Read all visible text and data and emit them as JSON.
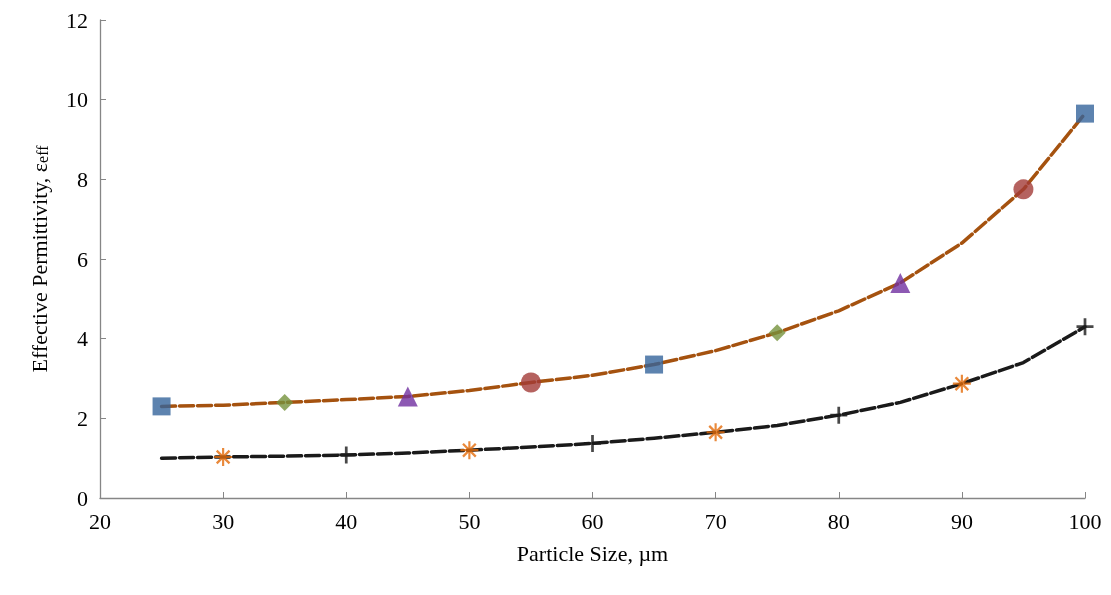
{
  "chart_data": {
    "type": "line",
    "xlabel": "Particle Size, µm",
    "ylabel": "Effective Permittivity, ε$_{eff}$",
    "xlim": [
      20,
      100
    ],
    "xticks": [
      20,
      30,
      40,
      50,
      60,
      70,
      80,
      90,
      100
    ],
    "ylim": [
      0,
      12
    ],
    "yticks": [
      0,
      2,
      4,
      6,
      8,
      10,
      12
    ],
    "grid": false,
    "series": [
      {
        "color": "#a5520f",
        "line_style": "dashed",
        "marker": "none",
        "x": [
          25,
          30,
          35,
          40,
          45,
          50,
          55,
          60,
          65,
          70,
          75,
          80,
          85,
          90,
          95,
          100
        ],
        "values": [
          2.3,
          2.33,
          2.4,
          2.47,
          2.55,
          2.7,
          2.9,
          3.08,
          3.35,
          3.7,
          4.15,
          4.7,
          5.4,
          6.4,
          7.75,
          9.65
        ]
      },
      {
        "type": "scatter",
        "color": "#35649b",
        "marker": "square",
        "x": [
          25,
          65,
          100
        ],
        "values": [
          2.3,
          3.35,
          9.65
        ]
      },
      {
        "type": "scatter",
        "color": "#76923c",
        "marker": "diamond",
        "x": [
          35,
          75
        ],
        "values": [
          2.4,
          4.15
        ]
      },
      {
        "type": "scatter",
        "color": "#7030a0",
        "marker": "triangle",
        "x": [
          45,
          85
        ],
        "values": [
          2.55,
          5.4
        ]
      },
      {
        "type": "scatter",
        "color": "#a33b37",
        "marker": "circle",
        "x": [
          55,
          95
        ],
        "values": [
          2.9,
          7.75
        ]
      },
      {
        "color": "#1a1a1a",
        "line_style": "dashed",
        "marker": "none",
        "x": [
          25,
          30,
          35,
          40,
          45,
          50,
          55,
          60,
          65,
          70,
          75,
          80,
          85,
          90,
          95,
          100
        ],
        "values": [
          1.0,
          1.03,
          1.05,
          1.08,
          1.13,
          1.2,
          1.28,
          1.37,
          1.5,
          1.65,
          1.82,
          2.08,
          2.4,
          2.87,
          3.4,
          4.3
        ]
      },
      {
        "type": "scatter",
        "color": "#e46c0a",
        "marker": "star",
        "x": [
          30,
          50,
          70,
          90
        ],
        "values": [
          1.03,
          1.2,
          1.65,
          2.87
        ]
      },
      {
        "type": "scatter",
        "color": "#1a1a1a",
        "marker": "cross",
        "x": [
          40,
          60,
          80,
          100
        ],
        "values": [
          1.08,
          1.37,
          2.08,
          4.3
        ]
      }
    ]
  }
}
